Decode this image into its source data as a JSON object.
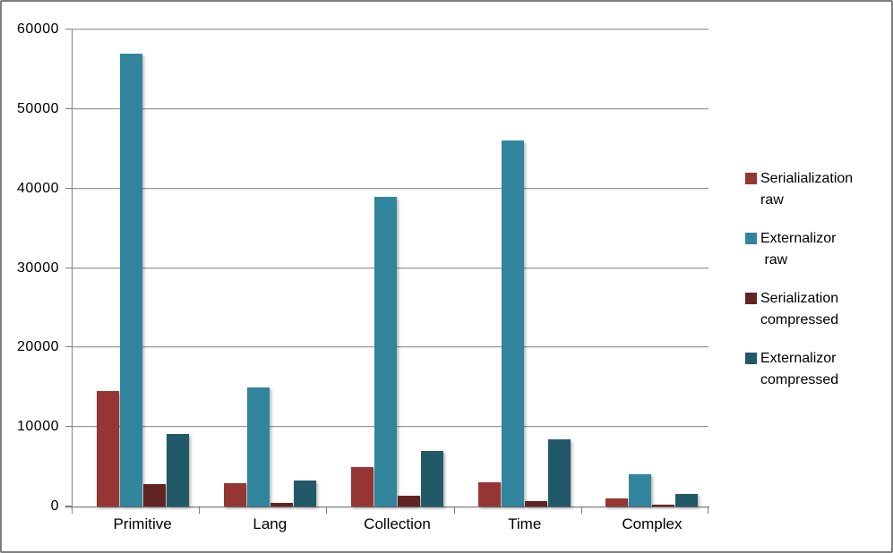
{
  "chart_data": {
    "type": "bar",
    "title": "",
    "categories": [
      "Primitive",
      "Lang",
      "Collection",
      "Time",
      "Complex"
    ],
    "series": [
      {
        "name": "Serialialization raw",
        "legend_text": "Serialialization\nraw",
        "color": "#963634",
        "values": [
          14500,
          2900,
          5000,
          3000,
          1000
        ]
      },
      {
        "name": "Externalizor raw",
        "legend_text": "Externalizor\n raw",
        "color": "#31859C",
        "values": [
          57000,
          15000,
          39000,
          46000,
          4100
        ]
      },
      {
        "name": "Serialization compressed",
        "legend_text": "Serialization\ncompressed",
        "color": "#622423",
        "values": [
          2800,
          400,
          1400,
          700,
          250
        ]
      },
      {
        "name": "Externalizor compressed",
        "legend_text": "Externalizor\ncompressed",
        "color": "#215968",
        "values": [
          9100,
          3300,
          7000,
          8400,
          1600
        ]
      }
    ],
    "ylim": [
      0,
      60000
    ],
    "yticks": [
      0,
      10000,
      20000,
      30000,
      40000,
      50000,
      60000
    ],
    "ytick_labels": [
      "0",
      "10000",
      "20000",
      "30000",
      "40000",
      "50000",
      "60000"
    ],
    "grid": true,
    "legend_position": "right"
  },
  "colors": {
    "axis": "#808080",
    "gridline": "#969696",
    "frame_border": "#7f7f7f",
    "background": "#ffffff",
    "text": "#000000"
  }
}
